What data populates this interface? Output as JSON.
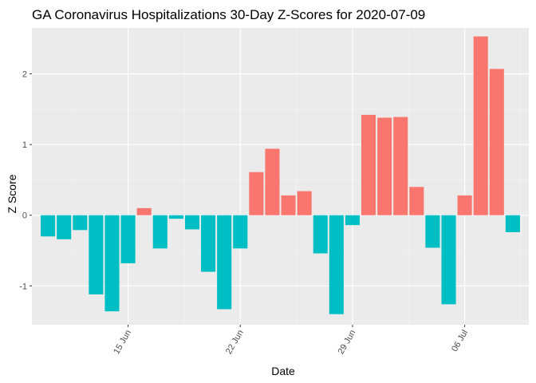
{
  "chart_data": {
    "type": "bar",
    "title": "GA Coronavirus Hospitalizations 30-Day Z-Scores for 2020-07-09",
    "xlabel": "Date",
    "ylabel": "Z Score",
    "x_type": "date",
    "dates": [
      "2020-06-10",
      "2020-06-11",
      "2020-06-12",
      "2020-06-13",
      "2020-06-14",
      "2020-06-15",
      "2020-06-16",
      "2020-06-17",
      "2020-06-18",
      "2020-06-19",
      "2020-06-20",
      "2020-06-21",
      "2020-06-22",
      "2020-06-23",
      "2020-06-24",
      "2020-06-25",
      "2020-06-26",
      "2020-06-27",
      "2020-06-28",
      "2020-06-29",
      "2020-06-30",
      "2020-07-01",
      "2020-07-02",
      "2020-07-03",
      "2020-07-04",
      "2020-07-05",
      "2020-07-06",
      "2020-07-07",
      "2020-07-08",
      "2020-07-09"
    ],
    "values": [
      -0.3,
      -0.34,
      -0.21,
      -1.12,
      -1.36,
      -0.68,
      0.1,
      -0.47,
      -0.05,
      -0.2,
      -0.8,
      -1.33,
      -0.47,
      0.61,
      0.94,
      0.28,
      0.34,
      -0.54,
      -1.4,
      -0.14,
      1.42,
      1.38,
      1.39,
      0.4,
      -0.46,
      -1.26,
      0.28,
      2.53,
      2.07,
      -0.24
    ],
    "x_ticks": [
      {
        "date": "2020-06-15",
        "label": "15 Jun"
      },
      {
        "date": "2020-06-22",
        "label": "22 Jun"
      },
      {
        "date": "2020-06-29",
        "label": "29 Jun"
      },
      {
        "date": "2020-07-06",
        "label": "06 Jul"
      }
    ],
    "y_ticks": [
      -1,
      0,
      1,
      2
    ],
    "ylim": [
      -1.55,
      2.65
    ],
    "xlim": [
      "2020-06-09",
      "2020-07-10"
    ],
    "grid": true,
    "colors": {
      "positive": "#F8766D",
      "negative": "#00BFC4",
      "panel": "#EBEBEB",
      "grid_major": "#FFFFFF",
      "grid_minor": "#F5F5F5"
    },
    "legend": "none"
  }
}
